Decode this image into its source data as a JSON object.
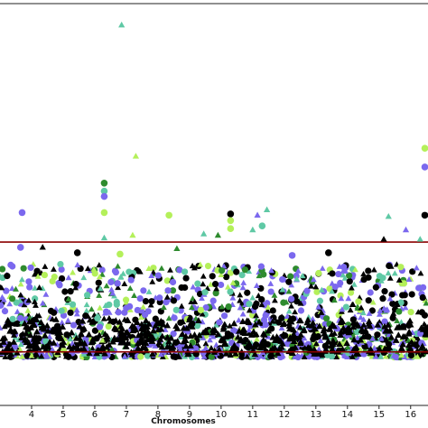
{
  "chart_data": {
    "type": "scatter",
    "title": "",
    "xlabel": "Chromosomes",
    "ylabel": "",
    "x_ticks": [
      {
        "label": "4",
        "pos": 4
      },
      {
        "label": "5",
        "pos": 5
      },
      {
        "label": "6",
        "pos": 6
      },
      {
        "label": "7",
        "pos": 7
      },
      {
        "label": "8",
        "pos": 8
      },
      {
        "label": "9",
        "pos": 9
      },
      {
        "label": "10",
        "pos": 10
      },
      {
        "label": "11",
        "pos": 11
      },
      {
        "label": "12",
        "pos": 12
      },
      {
        "label": "13",
        "pos": 13
      },
      {
        "label": "14",
        "pos": 14
      },
      {
        "label": "15",
        "pos": 15
      },
      {
        "label": "16",
        "pos": 16
      }
    ],
    "xlim": [
      3.0,
      16.55
    ],
    "ylim": [
      -1.0,
      14.0
    ],
    "threshold_lines": [
      5.1,
      1.0
    ],
    "threshold_color": "#8b0000",
    "grid": false,
    "legend": "none",
    "marker_colors": {
      "black": "#000000",
      "purple": "#7b68ee",
      "teal": "#5fc9a5",
      "lime": "#b4f05a",
      "green": "#2e8b2e"
    },
    "highlighted_points": [
      {
        "x": 6.85,
        "y": 13.2,
        "shape": "triangle",
        "color": "teal"
      },
      {
        "x": 7.3,
        "y": 8.3,
        "shape": "triangle",
        "color": "lime"
      },
      {
        "x": 6.3,
        "y": 7.3,
        "shape": "circle",
        "color": "green"
      },
      {
        "x": 6.3,
        "y": 7.0,
        "shape": "circle",
        "color": "teal"
      },
      {
        "x": 6.3,
        "y": 6.8,
        "shape": "circle",
        "color": "purple"
      },
      {
        "x": 6.3,
        "y": 6.2,
        "shape": "circle",
        "color": "lime"
      },
      {
        "x": 3.7,
        "y": 6.2,
        "shape": "circle",
        "color": "purple"
      },
      {
        "x": 8.35,
        "y": 6.1,
        "shape": "circle",
        "color": "lime"
      },
      {
        "x": 10.3,
        "y": 6.15,
        "shape": "circle",
        "color": "black"
      },
      {
        "x": 10.3,
        "y": 5.9,
        "shape": "circle",
        "color": "lime"
      },
      {
        "x": 11.15,
        "y": 6.1,
        "shape": "triangle",
        "color": "purple"
      },
      {
        "x": 11.45,
        "y": 6.3,
        "shape": "triangle",
        "color": "teal"
      },
      {
        "x": 15.3,
        "y": 6.05,
        "shape": "triangle",
        "color": "teal"
      },
      {
        "x": 16.45,
        "y": 8.6,
        "shape": "circle",
        "color": "lime"
      },
      {
        "x": 16.45,
        "y": 7.9,
        "shape": "circle",
        "color": "purple"
      },
      {
        "x": 16.45,
        "y": 6.1,
        "shape": "circle",
        "color": "black"
      },
      {
        "x": 6.3,
        "y": 5.25,
        "shape": "triangle",
        "color": "teal"
      },
      {
        "x": 7.2,
        "y": 5.35,
        "shape": "triangle",
        "color": "lime"
      },
      {
        "x": 9.9,
        "y": 5.35,
        "shape": "triangle",
        "color": "green"
      },
      {
        "x": 9.45,
        "y": 5.4,
        "shape": "triangle",
        "color": "teal"
      },
      {
        "x": 10.3,
        "y": 5.6,
        "shape": "circle",
        "color": "lime"
      },
      {
        "x": 11.0,
        "y": 5.55,
        "shape": "triangle",
        "color": "teal"
      },
      {
        "x": 11.3,
        "y": 5.7,
        "shape": "circle",
        "color": "teal"
      },
      {
        "x": 15.85,
        "y": 5.55,
        "shape": "triangle",
        "color": "purple"
      },
      {
        "x": 15.15,
        "y": 5.2,
        "shape": "triangle",
        "color": "black"
      },
      {
        "x": 16.3,
        "y": 5.2,
        "shape": "triangle",
        "color": "teal"
      },
      {
        "x": 3.65,
        "y": 4.9,
        "shape": "circle",
        "color": "purple"
      },
      {
        "x": 4.35,
        "y": 4.9,
        "shape": "triangle",
        "color": "black"
      },
      {
        "x": 5.45,
        "y": 4.7,
        "shape": "circle",
        "color": "black"
      },
      {
        "x": 8.6,
        "y": 4.85,
        "shape": "triangle",
        "color": "green"
      },
      {
        "x": 6.8,
        "y": 4.65,
        "shape": "circle",
        "color": "lime"
      },
      {
        "x": 12.25,
        "y": 4.6,
        "shape": "circle",
        "color": "purple"
      },
      {
        "x": 13.4,
        "y": 4.7,
        "shape": "circle",
        "color": "black"
      }
    ],
    "point_cloud": {
      "description_of_density": "",
      "y_range": [
        0.8,
        4.3
      ],
      "count": 1400
    }
  }
}
